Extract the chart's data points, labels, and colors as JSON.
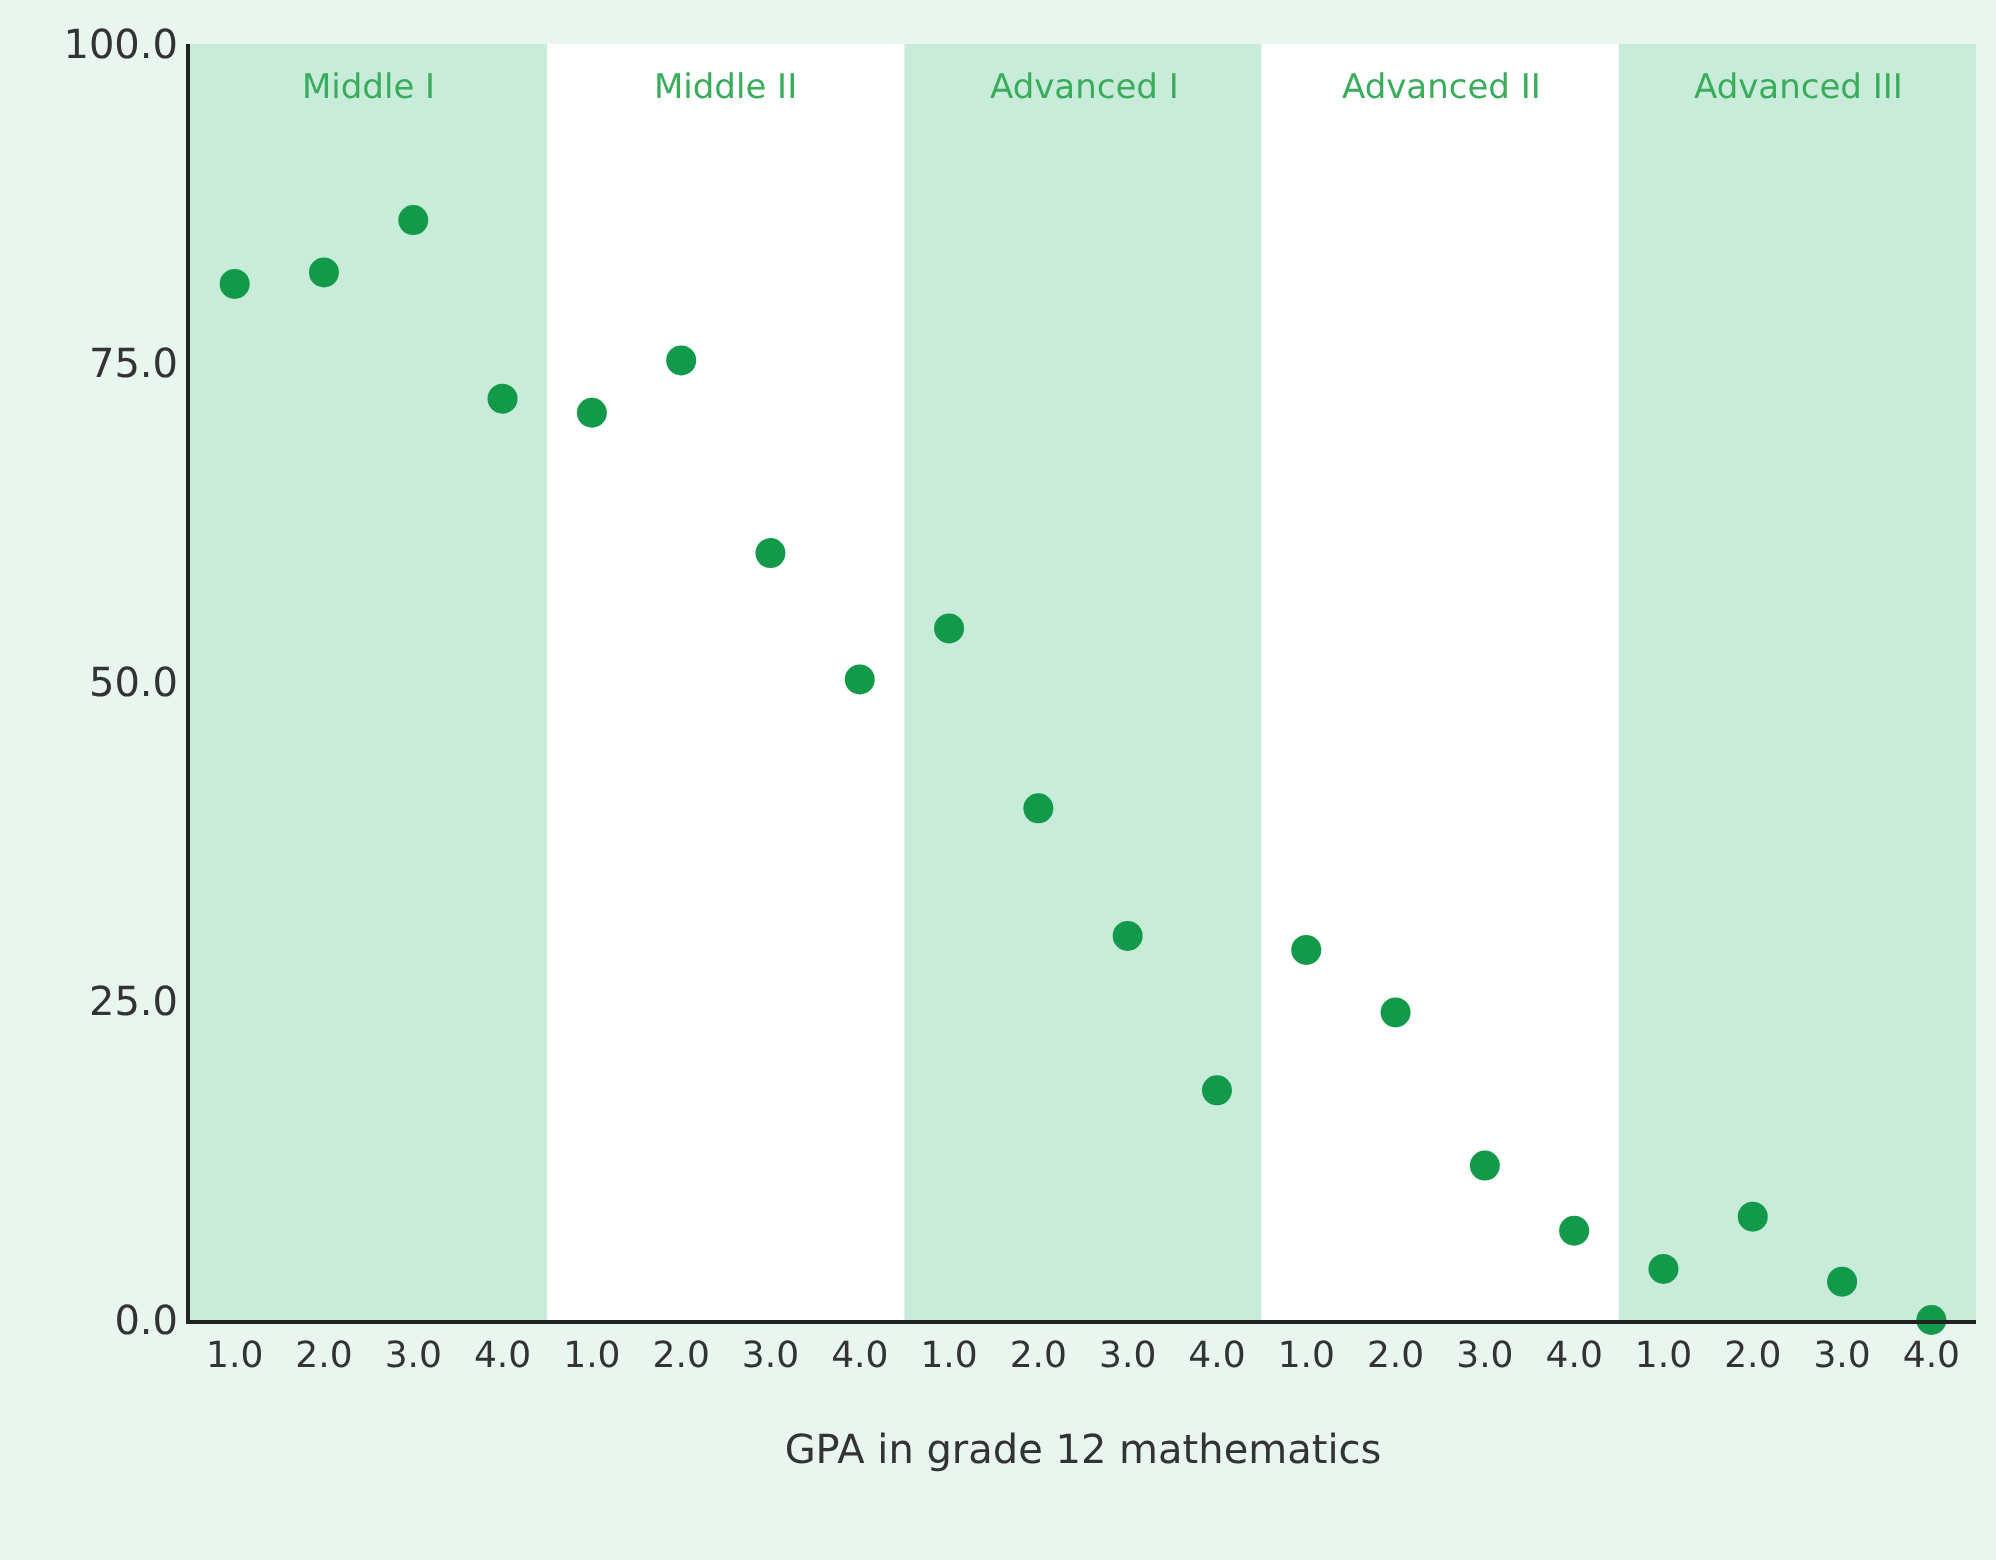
{
  "chart_data": {
    "type": "scatter",
    "xlabel": "GPA in grade 12 mathematics",
    "categories": [
      "1.0",
      "2.0",
      "3.0",
      "4.0",
      "1.0",
      "2.0",
      "3.0",
      "4.0",
      "1.0",
      "2.0",
      "3.0",
      "4.0",
      "1.0",
      "2.0",
      "3.0",
      "4.0",
      "1.0",
      "2.0",
      "3.0",
      "4.0"
    ],
    "series": [
      {
        "color": "#12994a",
        "values": [
          81.2,
          82.1,
          86.2,
          72.2,
          71.1,
          75.2,
          60.1,
          50.2,
          54.2,
          40.1,
          30.1,
          18.0,
          29.0,
          24.1,
          12.1,
          7.0,
          4.0,
          8.1,
          3.0,
          0
        ]
      }
    ],
    "ylim": [
      0,
      100
    ],
    "yticks": [
      {
        "value": 0,
        "label": "0.0"
      },
      {
        "value": 25,
        "label": "25.0"
      },
      {
        "value": 50,
        "label": "50.0"
      },
      {
        "value": 75,
        "label": "75.0"
      },
      {
        "value": 100,
        "label": "100.0"
      }
    ],
    "annotations": [
      "Middle I",
      "Middle II",
      "Advanced I",
      "Advanced II",
      "Advanced III"
    ],
    "grid": false,
    "marker": "circle"
  }
}
